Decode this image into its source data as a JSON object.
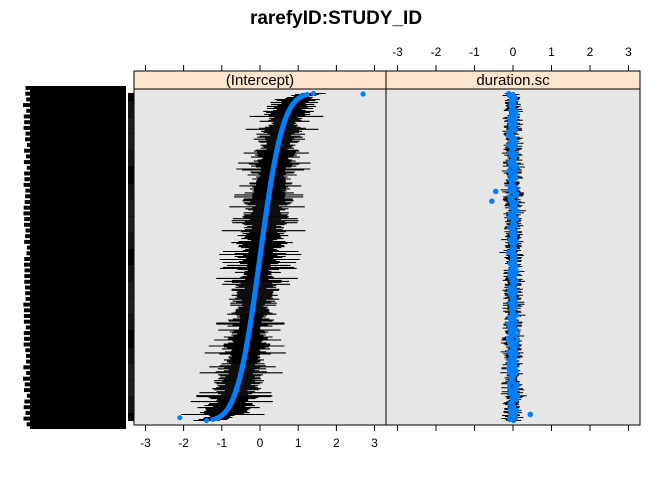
{
  "chart_data": {
    "type": "scatter",
    "title": "rarefyID:STUDY_ID",
    "xlim": [
      -3.3,
      3.3
    ],
    "x_ticks": [
      -3,
      -2,
      -1,
      0,
      1,
      2,
      3
    ],
    "x_tick_labels": [
      "-3",
      "-2",
      "-1",
      "0",
      "1",
      "2",
      "3"
    ],
    "grid": false,
    "legend": "none",
    "panels": [
      {
        "name": "(Intercept)",
        "shape": "sorted sigmoid of random-effect estimates with horizontal error bars",
        "estimate_min": -2.1,
        "estimate_max": 2.7,
        "central_median": 0.0,
        "central_spread": 0.45,
        "error_halfwidth_typical": 0.45,
        "error_halfwidth_max": 1.1,
        "outliers": [
          {
            "x": 2.7,
            "rank_from_top": 0.003
          },
          {
            "x": -2.1,
            "rank_from_top": 0.99
          }
        ]
      },
      {
        "name": "duration.sc",
        "shape": "estimates clustered near zero with short horizontal error bars",
        "estimate_center": 0.0,
        "estimate_spread": 0.06,
        "error_halfwidth_typical": 0.2,
        "outliers": [
          {
            "x": -0.55,
            "rank_from_top": 0.33
          },
          {
            "x": -0.45,
            "rank_from_top": 0.3
          },
          {
            "x": 0.45,
            "rank_from_top": 0.98
          }
        ]
      }
    ],
    "y_tick_labels": "many overlapping level labels (illegible)"
  },
  "colors": {
    "panel_bg": "#e6e6e6",
    "strip_bg": "#ffe5cc",
    "point": "#0080ff",
    "error_bar": "#000000",
    "axis": "#000000"
  }
}
